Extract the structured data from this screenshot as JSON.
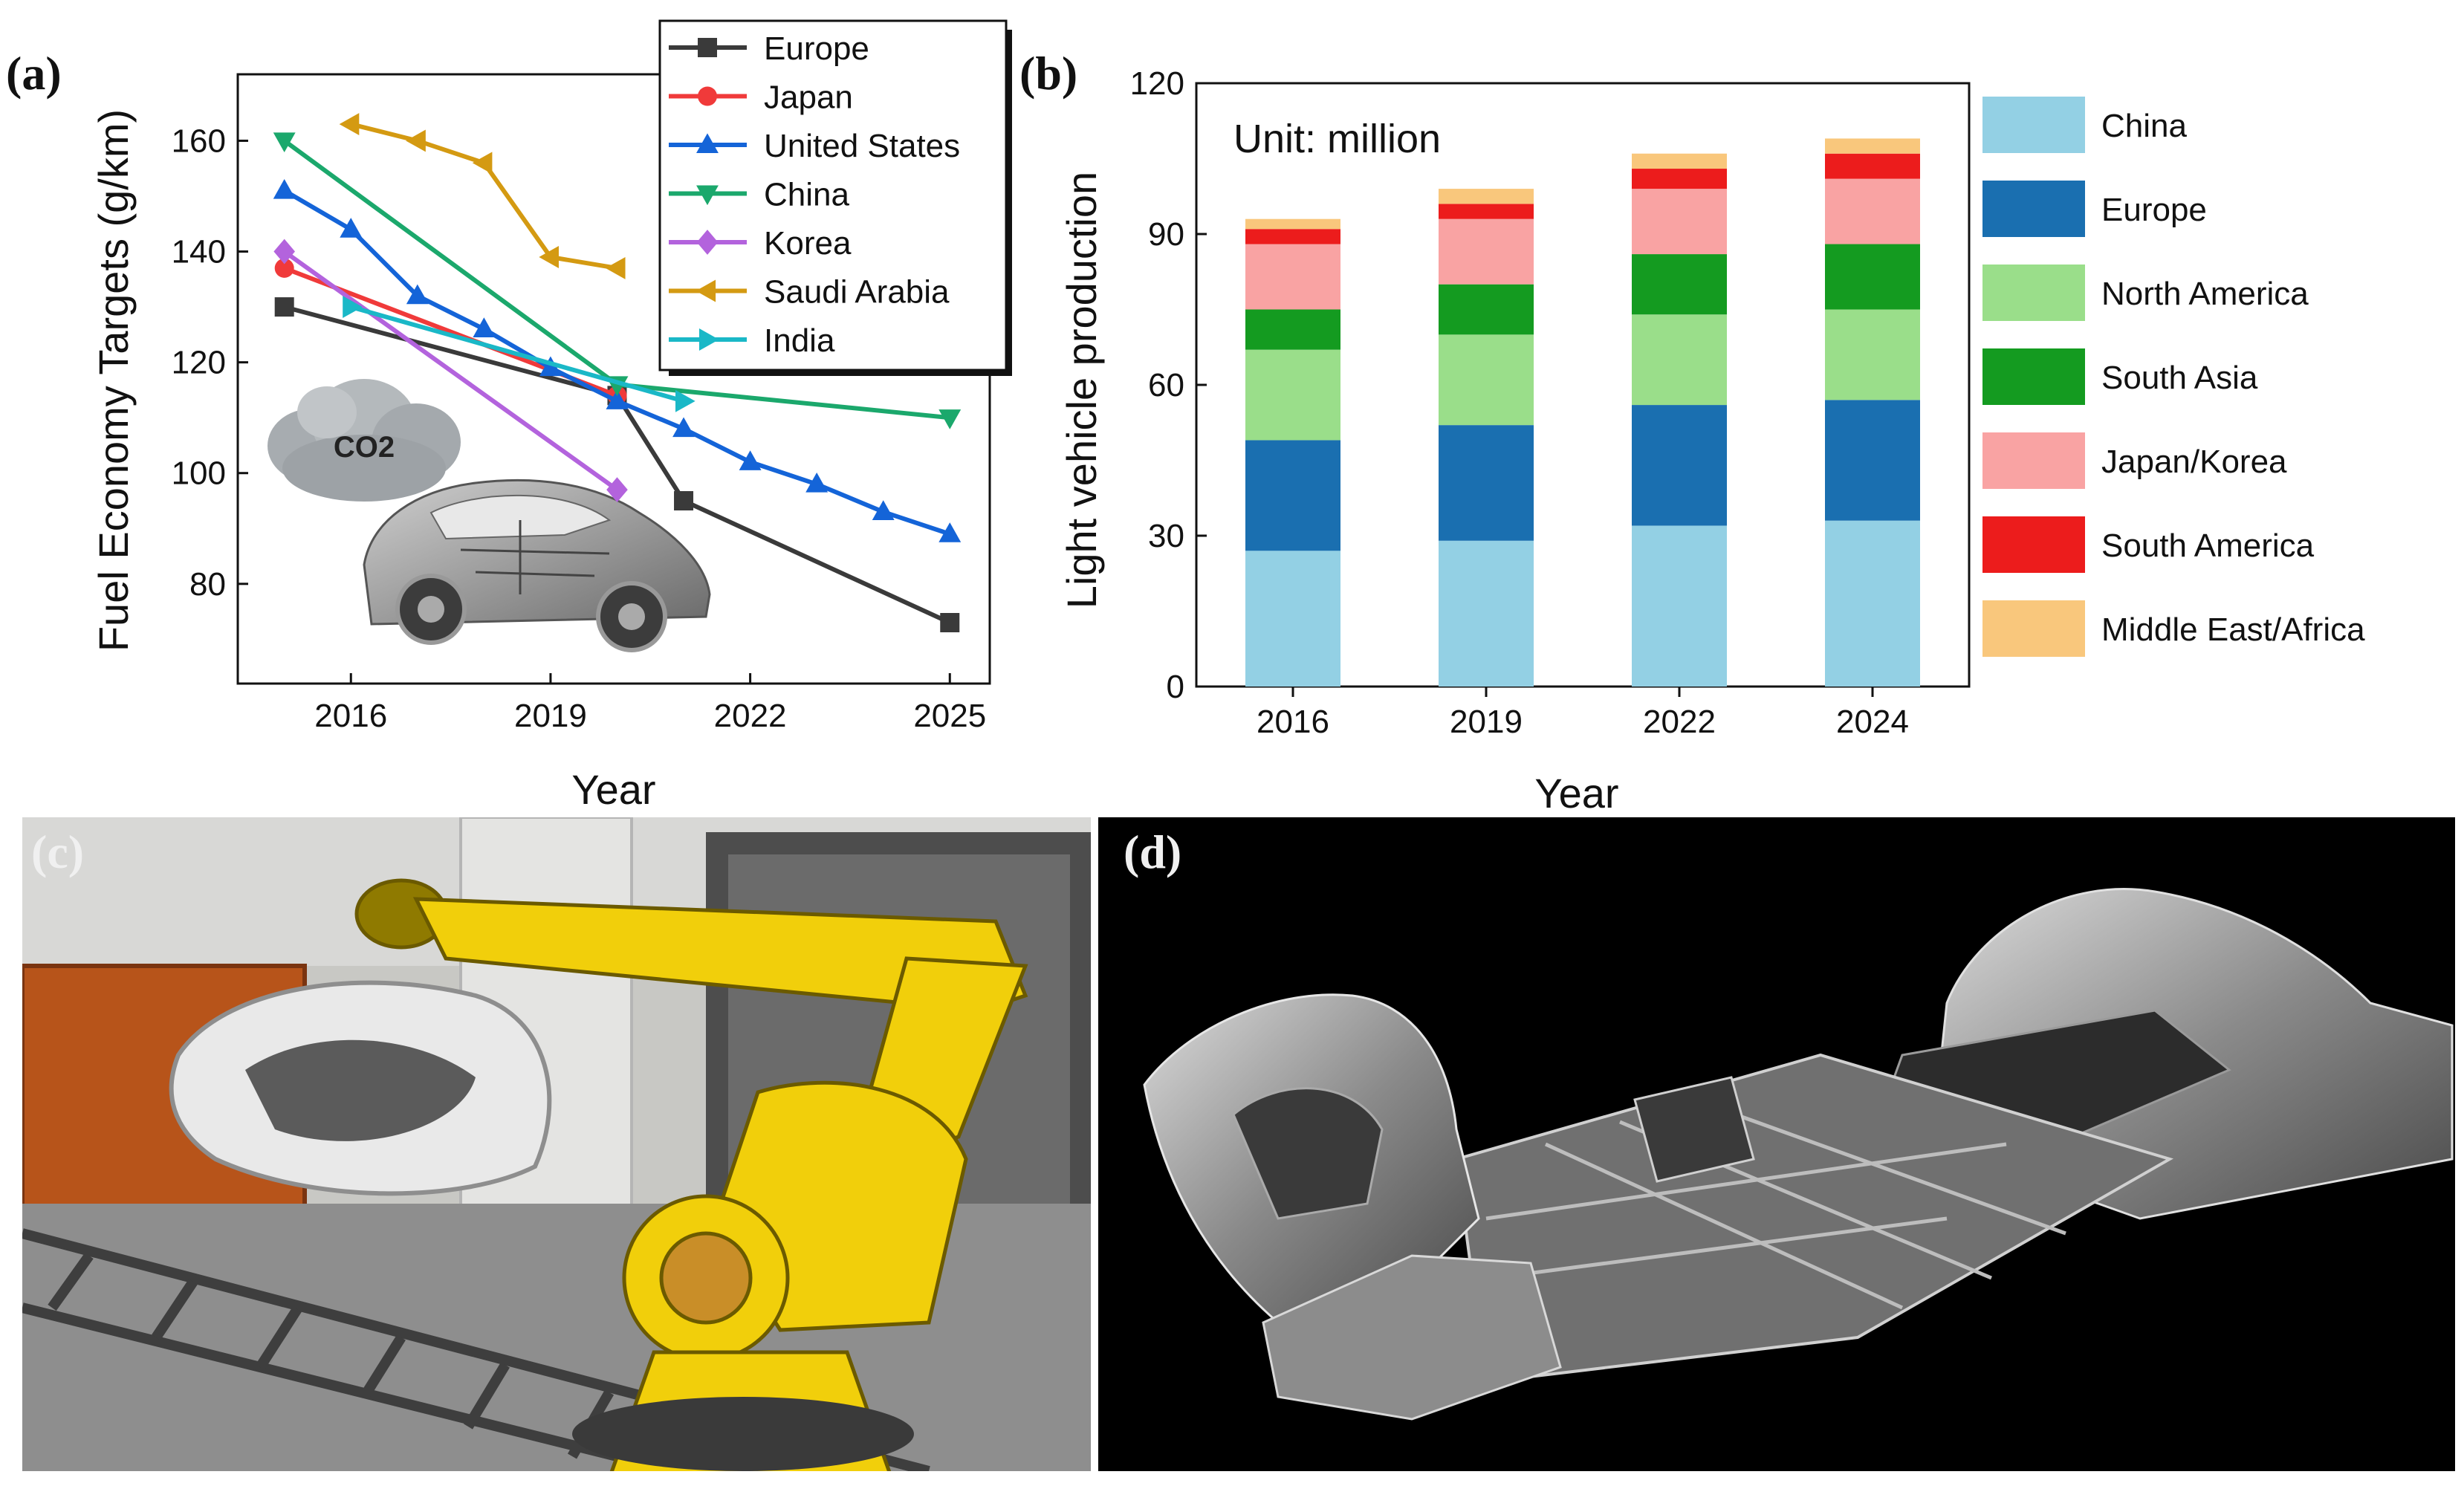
{
  "figure": {
    "panel_labels": [
      "(a)",
      "(b)",
      "(c)",
      "(d)"
    ],
    "inset_label_co2": "CO2",
    "photo_c": "Yellow industrial robot arm handling a large die-cast car body part",
    "photo_d": "Gigacast electric vehicle underbody platform on black background"
  },
  "chart_data": [
    {
      "type": "line",
      "panel": "(a)",
      "title": "",
      "xlabel": "Year",
      "ylabel": "Fuel Economy Targets (g/km)",
      "xlim": [
        2014.3,
        2025.6
      ],
      "ylim": [
        62,
        172
      ],
      "xticks": [
        2016,
        2019,
        2022,
        2025
      ],
      "yticks": [
        80,
        100,
        120,
        140,
        160
      ],
      "series": [
        {
          "name": "Europe",
          "color": "#3a3a3a",
          "marker": "square",
          "x": [
            2015,
            2020,
            2021,
            2025
          ],
          "y": [
            130,
            114,
            95,
            73
          ]
        },
        {
          "name": "Japan",
          "color": "#f03a3a",
          "marker": "circle",
          "x": [
            2015,
            2020
          ],
          "y": [
            137,
            114
          ]
        },
        {
          "name": "United States",
          "color": "#1464d8",
          "marker": "triangle-up",
          "x": [
            2015,
            2016,
            2017,
            2018,
            2019,
            2020,
            2021,
            2022,
            2023,
            2024,
            2025
          ],
          "y": [
            151,
            144,
            132,
            126,
            119,
            113,
            108,
            102,
            98,
            93,
            89
          ]
        },
        {
          "name": "China",
          "color": "#1ba86c",
          "marker": "triangle-down",
          "x": [
            2015,
            2020,
            2025
          ],
          "y": [
            160,
            116,
            110
          ]
        },
        {
          "name": "Korea",
          "color": "#b363dd",
          "marker": "diamond",
          "x": [
            2015,
            2020
          ],
          "y": [
            140,
            97
          ]
        },
        {
          "name": "Saudi Arabia",
          "color": "#d49a12",
          "marker": "triangle-left",
          "x": [
            2016,
            2017,
            2018,
            2019,
            2020
          ],
          "y": [
            163,
            160,
            156,
            139,
            137
          ]
        },
        {
          "name": "India",
          "color": "#1ab8c7",
          "marker": "triangle-right",
          "x": [
            2016,
            2021
          ],
          "y": [
            130,
            113
          ]
        }
      ]
    },
    {
      "type": "bar",
      "stacked": true,
      "panel": "(b)",
      "title": "",
      "annotation": "Unit: million",
      "xlabel": "Year",
      "ylabel": "Light vehicle production",
      "ylim": [
        0,
        120
      ],
      "yticks": [
        0,
        30,
        60,
        90,
        120
      ],
      "categories": [
        "2016",
        "2019",
        "2022",
        "2024"
      ],
      "series": [
        {
          "name": "China",
          "color": "#93d0e4",
          "values": [
            27,
            29,
            32,
            33
          ]
        },
        {
          "name": "Europe",
          "color": "#1a6fb0",
          "values": [
            22,
            23,
            24,
            24
          ]
        },
        {
          "name": "North America",
          "color": "#9ade8a",
          "values": [
            18,
            18,
            18,
            18
          ]
        },
        {
          "name": "South Asia",
          "color": "#149b20",
          "values": [
            8,
            10,
            12,
            13
          ]
        },
        {
          "name": "Japan/Korea",
          "color": "#f9a3a3",
          "values": [
            13,
            13,
            13,
            13
          ]
        },
        {
          "name": "South America",
          "color": "#ec1c1c",
          "values": [
            3,
            3,
            4,
            5
          ]
        },
        {
          "name": "Middle East/Africa",
          "color": "#f9c77c",
          "values": [
            2,
            3,
            3,
            3
          ]
        }
      ]
    }
  ]
}
